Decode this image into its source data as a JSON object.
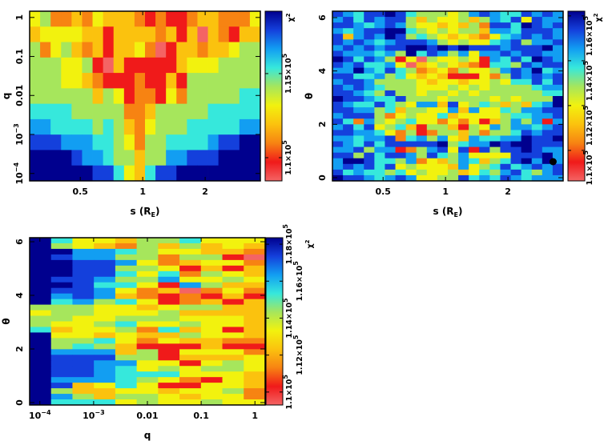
{
  "colormap": [
    "#f46464",
    "#f01a1a",
    "#f78312",
    "#fbc20e",
    "#f2f20e",
    "#a6e65c",
    "#36e8dc",
    "#129ef2",
    "#1440dc",
    "#00008e"
  ],
  "chart_data": [
    {
      "id": "s-q",
      "type": "heatmap",
      "title": "",
      "xlabel": "s (R",
      "xlabel_sub": "E",
      "xlabel_end": ")",
      "ylabel": "q",
      "xscale": "log",
      "yscale": "log",
      "xlim": [
        0.285,
        3.69
      ],
      "ylim_log10": [
        -4.19,
        0.16
      ],
      "xticks": [
        {
          "v": 0.5,
          "label": "0.5",
          "sup": ""
        },
        {
          "v": 1,
          "label": "1",
          "sup": ""
        },
        {
          "v": 2,
          "label": "2",
          "sup": ""
        }
      ],
      "yticks": [
        {
          "v": -4,
          "label": "10",
          "sup": "−4"
        },
        {
          "v": -3,
          "label": "10",
          "sup": "−3"
        },
        {
          "v": -2,
          "label": "0.01",
          "sup": ""
        },
        {
          "v": -1,
          "label": "0.1",
          "sup": ""
        },
        {
          "v": 0,
          "label": "1",
          "sup": ""
        }
      ],
      "z_levels_top_to_bottom": [
        "4522324333212112332224",
        "3444433133332313032133",
        "5245323133420133233455",
        "5554451031111134445555",
        "5554432111211315555555",
        "5555553541221425555566",
        "6666555552235555566666",
        "7766665653245556666677",
        "8887776654255666678899",
        "9999877655355778889999",
        "9999998864368899999999"
      ],
      "colorbar": {
        "label": "χ",
        "label_sup": "2",
        "range": [
          108620,
          118710
        ],
        "ticks": [
          {
            "v": 110000,
            "label": "1.1×10",
            "sup": "5"
          },
          {
            "v": 115000,
            "label": "1.15×10",
            "sup": "5"
          }
        ]
      }
    },
    {
      "id": "s-theta",
      "type": "heatmap",
      "title": "",
      "xlabel": "s (R",
      "xlabel_sub": "E",
      "xlabel_end": ")",
      "ylabel": "θ",
      "xscale": "log",
      "yscale": "linear",
      "xlim": [
        0.285,
        3.69
      ],
      "ylim": [
        -0.12,
        6.24
      ],
      "xticks": [
        {
          "v": 0.5,
          "label": "0.5",
          "sup": ""
        },
        {
          "v": 1,
          "label": "1",
          "sup": ""
        },
        {
          "v": 2,
          "label": "2",
          "sup": ""
        }
      ],
      "yticks": [
        {
          "v": 0,
          "label": "0",
          "sup": ""
        },
        {
          "v": 2,
          "label": "2",
          "sup": ""
        },
        {
          "v": 4,
          "label": "4",
          "sup": ""
        },
        {
          "v": 6,
          "label": "6",
          "sup": ""
        }
      ],
      "best_fit_marker": {
        "s": 3.3,
        "theta": 0.6
      },
      "z_levels_top_to_bottom": [
        "8768898655545787668787",
        "7868788535445357684877",
        "8876787544343528869878",
        "7678899654545537768887",
        "8378798565434324678787",
        "8787678887545446785778",
        "7878788998989888788897",
        "8777675968757477878877",
        "9868751405445417686987",
        "8786674034543216658788",
        "7797686523425445787967",
        "8866756434311142587878",
        "7887555543443445466868",
        "8787655544454545555677",
        "8876585545545455555566",
        "9887668555455554545559",
        "8766865477384565353679",
        "8877563554473744657788",
        "7888524544634444566778",
        "8627545644242413575717",
        "7868456315531547577678",
        "8877642512553525568788",
        "7767782675743766779889",
        "8768688888956779899888",
        "7785771257848185889877",
        "8858688758657444488897",
        "7998665724357635689797",
        "7878684544437456867878",
        "8676656454453465786578",
        "9887678744558676876777"
      ],
      "colorbar": {
        "label": "χ",
        "label_sup": "2",
        "range": [
          108640,
          116210
        ],
        "ticks": [
          {
            "v": 110000,
            "label": "1.1×10",
            "sup": "5"
          },
          {
            "v": 112000,
            "label": "1.12×10",
            "sup": "5"
          },
          {
            "v": 114000,
            "label": "1.14×10",
            "sup": "5"
          },
          {
            "v": 116000,
            "label": "1.16×10",
            "sup": "5"
          }
        ]
      }
    },
    {
      "id": "q-theta",
      "type": "heatmap",
      "title": "",
      "xlabel": "q",
      "xlabel_sub": "",
      "xlabel_end": "",
      "ylabel": "θ",
      "xscale": "log",
      "yscale": "linear",
      "xlim_log10": [
        -4.19,
        0.19
      ],
      "ylim": [
        -0.09,
        6.15
      ],
      "xticks": [
        {
          "v": -4,
          "label": "10",
          "sup": "−4"
        },
        {
          "v": -3,
          "label": "10",
          "sup": "−3"
        },
        {
          "v": -2,
          "label": "0.01",
          "sup": ""
        },
        {
          "v": -1,
          "label": "0.1",
          "sup": ""
        },
        {
          "v": 0,
          "label": "1",
          "sup": ""
        }
      ],
      "yticks": [
        {
          "v": 0,
          "label": "0",
          "sup": ""
        },
        {
          "v": 2,
          "label": "2",
          "sup": ""
        },
        {
          "v": 4,
          "label": "4",
          "sup": ""
        },
        {
          "v": 6,
          "label": "6",
          "sup": ""
        }
      ],
      "z_levels_top_to_bottom": [
        "96443556444",
        "95432535343",
        "99776544332",
        "98775525510",
        "99887423442",
        "99885541313",
        "99886462543",
        "98875574454",
        "99866417533",
        "98874230242",
        "97873212131",
        "96756412313",
        "55544345533",
        "45544453333",
        "55445554443",
        "54456445443",
        "63445263413",
        "94434335443",
        "95564243322",
        "95653111311",
        "97773514442",
        "98885513334",
        "98877441454",
        "98876454554",
        "98876664443",
        "97776542143",
        "98346411443",
        "95334434452",
        "97535543442",
        "96664544544"
      ],
      "colorbar": {
        "label": "χ",
        "label_sup": "2",
        "range": [
          109300,
          118350
        ],
        "ticks": [
          {
            "v": 110000,
            "label": "1.1×10",
            "sup": "5"
          },
          {
            "v": 112000,
            "label": "1.12×10",
            "sup": "5"
          },
          {
            "v": 114000,
            "label": "1.14×10",
            "sup": "5"
          },
          {
            "v": 116000,
            "label": "1.16×10",
            "sup": "5"
          },
          {
            "v": 118000,
            "label": "1.18×10",
            "sup": "5"
          }
        ]
      }
    }
  ]
}
